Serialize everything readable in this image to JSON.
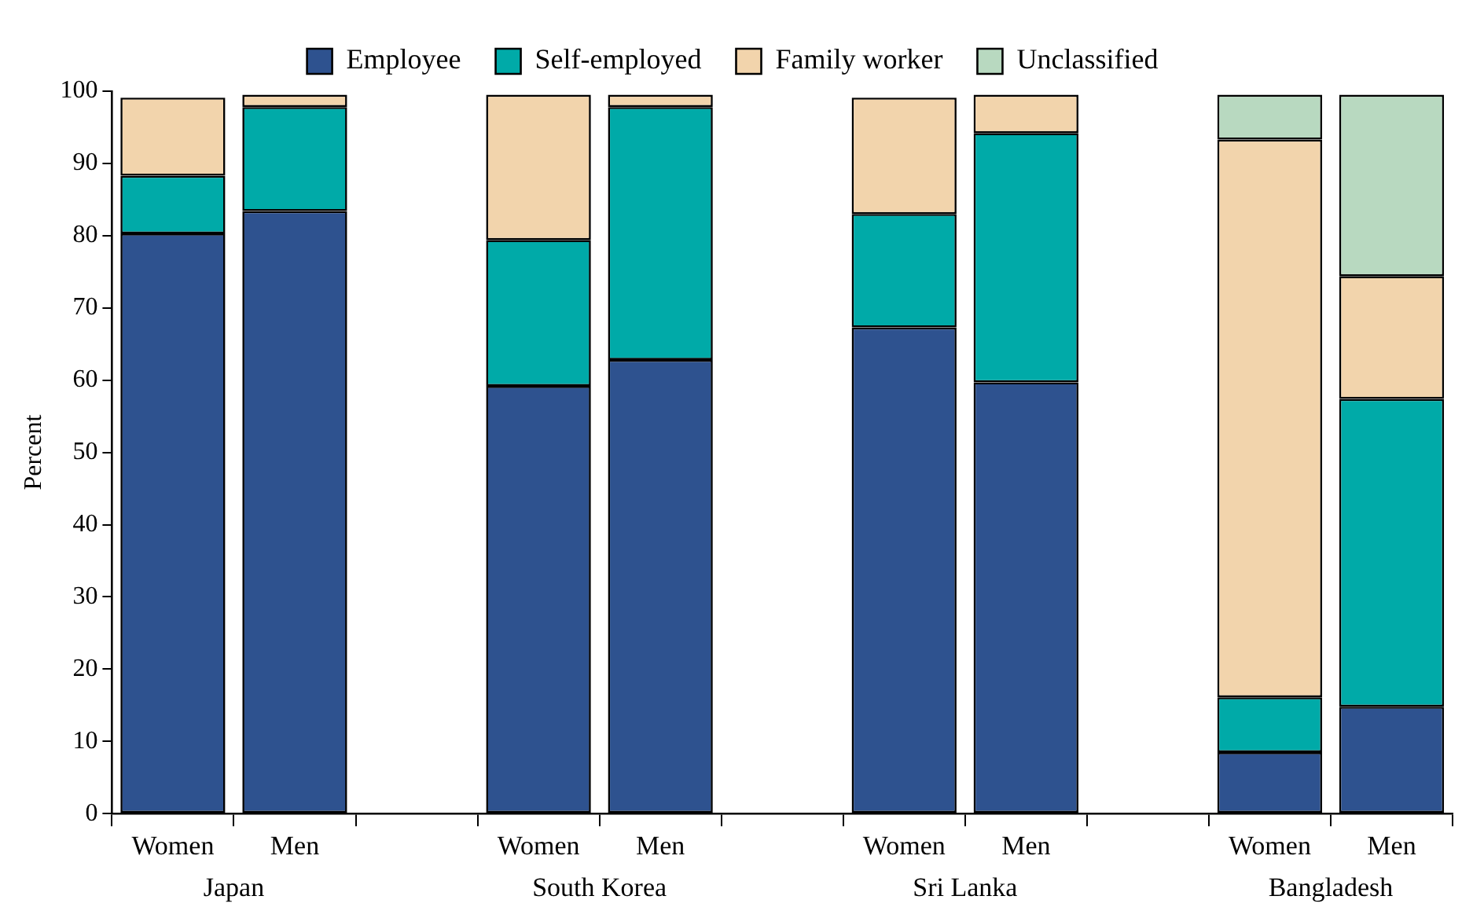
{
  "chart_data": {
    "type": "bar",
    "stacked": true,
    "ylabel": "Percent",
    "categories": [
      "Women",
      "Men",
      null,
      "Women",
      "Men",
      null,
      "Women",
      "Men",
      null,
      "Women",
      "Men"
    ],
    "series": [
      {
        "name": "Employee",
        "color": "#2e528f",
        "values": [
          80.3,
          83.4,
          null,
          59.2,
          62.8,
          null,
          67.3,
          59.7,
          null,
          8.5,
          14.8
        ]
      },
      {
        "name": "Self-employed",
        "color": "#00aaa8",
        "values": [
          8,
          14.4,
          null,
          20.2,
          35,
          null,
          15.7,
          34.5,
          null,
          7.6,
          42.6
        ]
      },
      {
        "name": "Family worker",
        "color": "#f2d4ac",
        "values": [
          10.8,
          1.7,
          null,
          20.1,
          1.7,
          null,
          16.1,
          5.3,
          null,
          77.2,
          17
        ]
      },
      {
        "name": "Unclassified",
        "color": "#b8d9c0",
        "values": [
          null,
          null,
          null,
          null,
          null,
          null,
          null,
          null,
          null,
          6.2,
          25.1
        ]
      }
    ],
    "annotations": [
      "Japan",
      "South Korea",
      "Sri Lanka",
      "Bangladesh"
    ],
    "ylim": [
      0,
      100
    ],
    "yticks": [
      0,
      10,
      20,
      30,
      40,
      50,
      60,
      70,
      80,
      90,
      100
    ],
    "grid": false,
    "legend": "top"
  }
}
